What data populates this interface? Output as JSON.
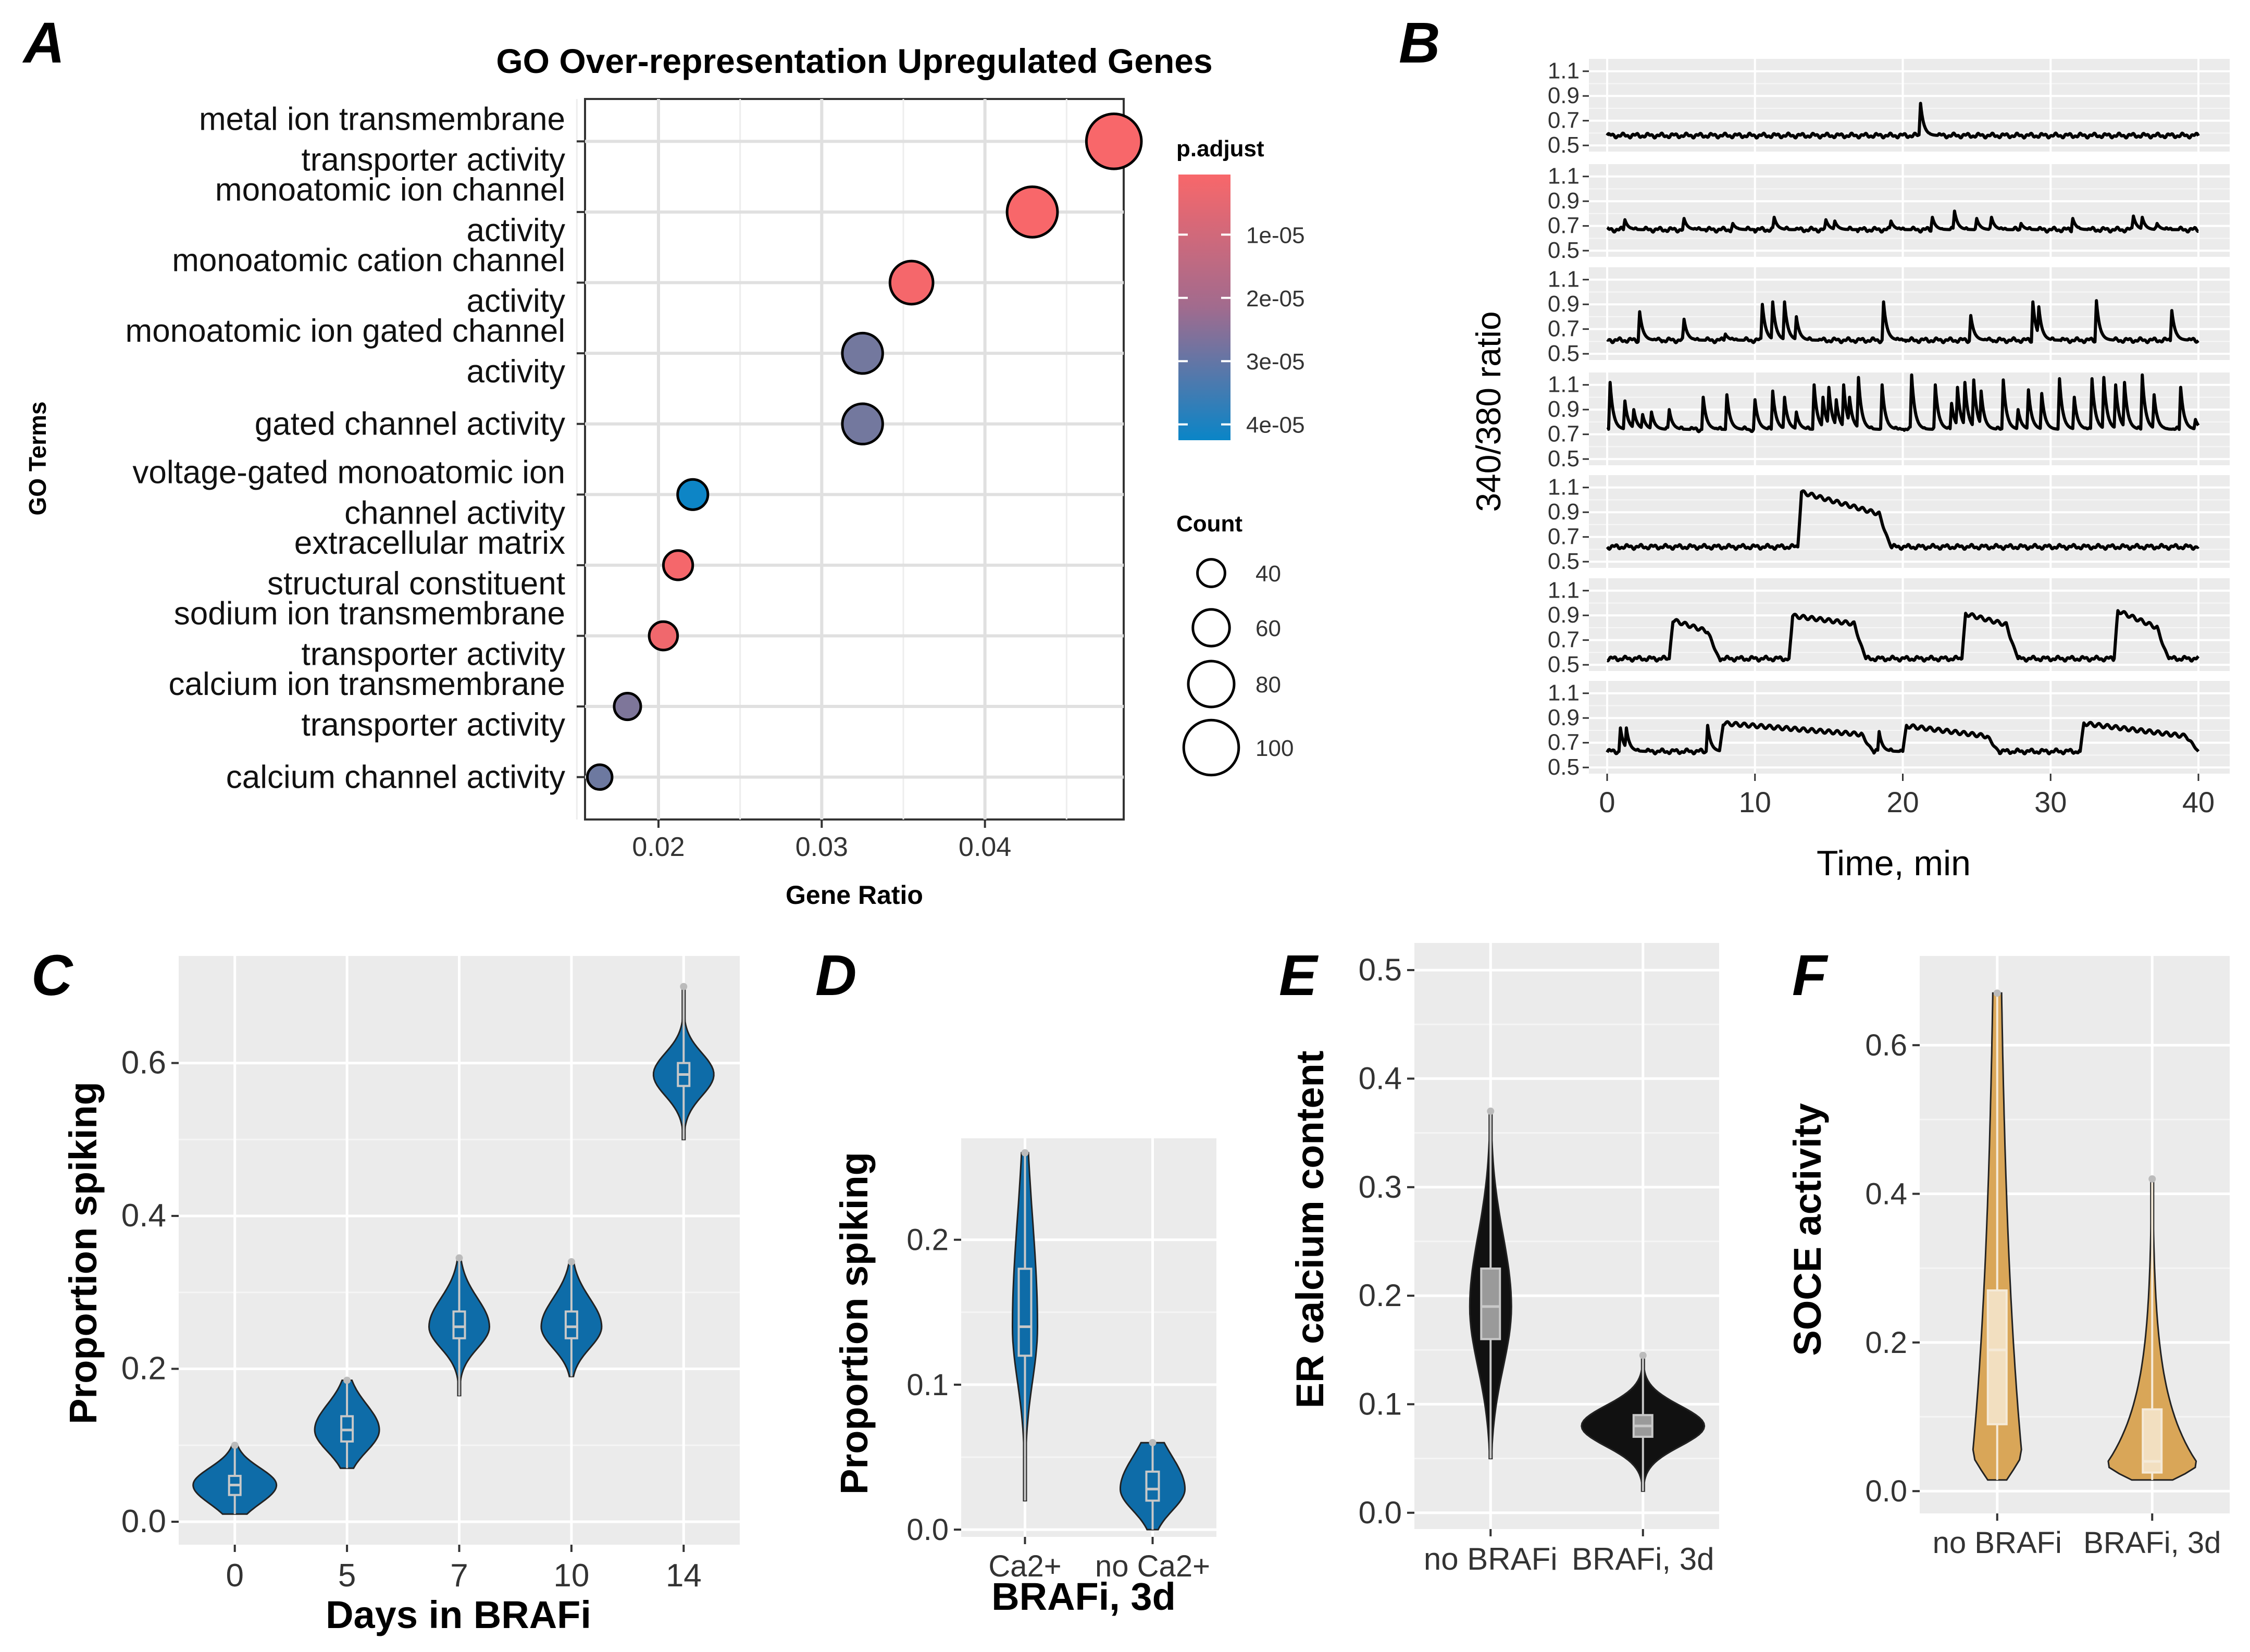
{
  "panels": {
    "A": "A",
    "B": "B",
    "C": "C",
    "D": "D",
    "E": "E",
    "F": "F"
  },
  "chart_data": [
    {
      "id": "A",
      "type": "scatter",
      "title": "GO Over-representation Upregulated Genes",
      "xlabel": "Gene Ratio",
      "ylabel": "GO Terms",
      "xlim": [
        0.0155,
        0.0485
      ],
      "xticks": [
        "0.02",
        "0.03",
        "0.04"
      ],
      "xtick_values": [
        0.02,
        0.03,
        0.04
      ],
      "terms": [
        {
          "line1": "metal ion transmembrane",
          "line2": "transporter activity",
          "x": 0.0479,
          "count": 100,
          "p_adjust": 5e-07
        },
        {
          "line1": "monoatomic ion channel",
          "line2": "activity",
          "x": 0.0429,
          "count": 90,
          "p_adjust": 5e-07
        },
        {
          "line1": "monoatomic cation channel",
          "line2": "activity",
          "x": 0.0355,
          "count": 74,
          "p_adjust": 1e-06
        },
        {
          "line1": "monoatomic ion gated channel",
          "line2": "activity",
          "x": 0.0325,
          "count": 68,
          "p_adjust": 2.4e-05
        },
        {
          "line1": "gated channel activity",
          "line2": "",
          "x": 0.0325,
          "count": 68,
          "p_adjust": 2.4e-05
        },
        {
          "line1": "voltage-gated monoatomic ion",
          "line2": "channel activity",
          "x": 0.0221,
          "count": 46,
          "p_adjust": 4.2e-05
        },
        {
          "line1": "extracellular matrix",
          "line2": "structural constituent",
          "x": 0.0212,
          "count": 44,
          "p_adjust": 1e-06
        },
        {
          "line1": "sodium ion transmembrane",
          "line2": "transporter activity",
          "x": 0.0203,
          "count": 42,
          "p_adjust": 2e-06
        },
        {
          "line1": "calcium ion transmembrane",
          "line2": "transporter activity",
          "x": 0.0181,
          "count": 38,
          "p_adjust": 2.2e-05
        },
        {
          "line1": "calcium channel activity",
          "line2": "",
          "x": 0.0164,
          "count": 34,
          "p_adjust": 2.5e-05
        }
      ],
      "color_legend": {
        "title": "p.adjust",
        "labels": [
          "1e-05",
          "2e-05",
          "3e-05",
          "4e-05"
        ],
        "values": [
          1e-05,
          2e-05,
          3e-05,
          4e-05
        ],
        "range": [
          5e-07,
          4.25e-05
        ],
        "low_color": "#F8676A",
        "high_color": "#0A85C7"
      },
      "size_legend": {
        "title": "Count",
        "labels": [
          "40",
          "60",
          "80",
          "100"
        ],
        "values": [
          40,
          60,
          80,
          100
        ]
      }
    },
    {
      "id": "B",
      "type": "line",
      "ylabel": "340/380 ratio",
      "xlabel": "Time, min",
      "xlim": [
        0,
        40
      ],
      "xticks": [
        "0",
        "10",
        "20",
        "30",
        "40"
      ],
      "xtick_values": [
        0,
        10,
        20,
        30,
        40
      ],
      "ylim": [
        0.45,
        1.2
      ],
      "yticks": [
        "1.1",
        "0.9",
        "0.7",
        "0.5"
      ],
      "ytick_values": [
        1.1,
        0.9,
        0.7,
        0.5
      ],
      "traces": [
        {
          "baseline": 0.58,
          "spikes": [
            [
              21.2,
              0.84
            ]
          ],
          "plateaus": []
        },
        {
          "baseline": 0.67,
          "spikes": [
            [
              1.2,
              0.75
            ],
            [
              5.2,
              0.76
            ],
            [
              8.5,
              0.72
            ],
            [
              11.3,
              0.77
            ],
            [
              14.8,
              0.75
            ],
            [
              15.4,
              0.74
            ],
            [
              19.2,
              0.74
            ],
            [
              22.0,
              0.77
            ],
            [
              23.5,
              0.82
            ],
            [
              25.0,
              0.76
            ],
            [
              26.0,
              0.77
            ],
            [
              28.0,
              0.72
            ],
            [
              31.5,
              0.76
            ],
            [
              35.6,
              0.78
            ],
            [
              36.2,
              0.77
            ],
            [
              37.2,
              0.72
            ]
          ],
          "plateaus": []
        },
        {
          "baseline": 0.61,
          "spikes": [
            [
              2.2,
              0.84
            ],
            [
              5.2,
              0.78
            ],
            [
              8.0,
              0.66
            ],
            [
              10.5,
              0.9
            ],
            [
              11.2,
              0.92
            ],
            [
              12.0,
              0.92
            ],
            [
              12.8,
              0.8
            ],
            [
              18.7,
              0.92
            ],
            [
              24.6,
              0.81
            ],
            [
              28.8,
              0.92
            ],
            [
              29.2,
              0.88
            ],
            [
              33.1,
              0.93
            ],
            [
              38.2,
              0.85
            ]
          ],
          "plateaus": []
        },
        {
          "baseline": 0.74,
          "spikes": [
            [
              0.2,
              1.12
            ],
            [
              1.2,
              0.97
            ],
            [
              1.8,
              0.9
            ],
            [
              2.4,
              0.86
            ],
            [
              3.0,
              0.88
            ],
            [
              4.2,
              0.9
            ],
            [
              6.5,
              1.0
            ],
            [
              8.1,
              1.02
            ],
            [
              10.0,
              0.98
            ],
            [
              11.2,
              1.05
            ],
            [
              12.0,
              1.0
            ],
            [
              12.8,
              0.88
            ],
            [
              14.0,
              1.1
            ],
            [
              14.6,
              1.0
            ],
            [
              15.0,
              1.08
            ],
            [
              15.5,
              0.98
            ],
            [
              16.0,
              1.1
            ],
            [
              16.4,
              1.0
            ],
            [
              17.0,
              1.16
            ],
            [
              18.6,
              1.1
            ],
            [
              20.6,
              1.18
            ],
            [
              22.2,
              1.1
            ],
            [
              23.3,
              0.95
            ],
            [
              23.7,
              1.08
            ],
            [
              24.2,
              1.12
            ],
            [
              24.8,
              1.14
            ],
            [
              25.3,
              1.05
            ],
            [
              26.8,
              1.14
            ],
            [
              27.8,
              0.9
            ],
            [
              28.5,
              1.06
            ],
            [
              29.4,
              1.03
            ],
            [
              30.6,
              1.15
            ],
            [
              31.6,
              1.0
            ],
            [
              32.8,
              1.15
            ],
            [
              33.6,
              1.16
            ],
            [
              34.4,
              1.1
            ],
            [
              35.0,
              1.12
            ],
            [
              36.2,
              1.18
            ],
            [
              37.0,
              1.02
            ],
            [
              38.8,
              1.08
            ],
            [
              39.8,
              0.82
            ]
          ],
          "plateaus": []
        },
        {
          "baseline": 0.62,
          "spikes": [],
          "plateaus": [
            [
              12.9,
              19.2,
              1.07,
              0.86
            ]
          ]
        },
        {
          "baseline": 0.55,
          "spikes": [],
          "plateaus": [
            [
              4.2,
              7.6,
              0.87,
              0.74
            ],
            [
              12.3,
              17.5,
              0.9,
              0.82
            ],
            [
              24.0,
              27.8,
              0.92,
              0.8
            ],
            [
              34.3,
              38.0,
              0.95,
              0.76
            ]
          ]
        },
        {
          "baseline": 0.63,
          "spikes": [
            [
              0.9,
              0.82
            ],
            [
              1.3,
              0.82
            ],
            [
              6.8,
              0.84
            ],
            [
              18.4,
              0.79
            ]
          ],
          "plateaus": [
            [
              7.6,
              18.0,
              0.86,
              0.76
            ],
            [
              20.0,
              26.5,
              0.84,
              0.74
            ],
            [
              32.0,
              40.0,
              0.86,
              0.74
            ]
          ]
        }
      ]
    },
    {
      "id": "C",
      "type": "violin",
      "ylabel": "Proportion spiking",
      "xlabel": "Days in BRAFi",
      "categories": [
        "0",
        "5",
        "7",
        "10",
        "14"
      ],
      "ylim": [
        -0.03,
        0.74
      ],
      "yticks": [
        "0.0",
        "0.2",
        "0.4",
        "0.6"
      ],
      "ytick_values": [
        0.0,
        0.2,
        0.4,
        0.6
      ],
      "fill": "#0E6CA8",
      "violins": [
        {
          "min": 0.01,
          "q1": 0.035,
          "median": 0.048,
          "q3": 0.06,
          "max": 0.1
        },
        {
          "min": 0.07,
          "q1": 0.105,
          "median": 0.12,
          "q3": 0.138,
          "max": 0.185
        },
        {
          "min": 0.165,
          "q1": 0.24,
          "median": 0.255,
          "q3": 0.275,
          "max": 0.345
        },
        {
          "min": 0.19,
          "q1": 0.24,
          "median": 0.255,
          "q3": 0.275,
          "max": 0.34
        },
        {
          "min": 0.5,
          "q1": 0.57,
          "median": 0.585,
          "q3": 0.6,
          "max": 0.7
        }
      ]
    },
    {
      "id": "D",
      "type": "violin",
      "ylabel": "Proportion spiking",
      "xlabel": "BRAFi, 3d",
      "categories": [
        "Ca2+",
        "no Ca2+"
      ],
      "ylim": [
        -0.005,
        0.27
      ],
      "yticks": [
        "0.0",
        "0.1",
        "0.2"
      ],
      "ytick_values": [
        0.0,
        0.1,
        0.2
      ],
      "fill": "#0E6CA8",
      "violins": [
        {
          "min": 0.02,
          "q1": 0.12,
          "median": 0.14,
          "q3": 0.18,
          "max": 0.26
        },
        {
          "min": 0.0,
          "q1": 0.02,
          "median": 0.028,
          "q3": 0.04,
          "max": 0.06
        }
      ]
    },
    {
      "id": "E",
      "type": "violin",
      "ylabel": "ER calcium content",
      "xlabel": "",
      "categories": [
        "no BRAFi",
        "BRAFi, 3d"
      ],
      "ylim": [
        -0.015,
        0.525
      ],
      "yticks": [
        "0.0",
        "0.1",
        "0.2",
        "0.3",
        "0.4",
        "0.5"
      ],
      "ytick_values": [
        0.0,
        0.1,
        0.2,
        0.3,
        0.4,
        0.5
      ],
      "fill": "#111111",
      "violins": [
        {
          "min": 0.05,
          "q1": 0.16,
          "median": 0.19,
          "q3": 0.225,
          "max": 0.37
        },
        {
          "min": 0.02,
          "q1": 0.07,
          "median": 0.08,
          "q3": 0.09,
          "max": 0.145
        }
      ]
    },
    {
      "id": "F",
      "type": "violin",
      "ylabel": "SOCE activity",
      "xlabel": "",
      "categories": [
        "no BRAFi",
        "BRAFi, 3d"
      ],
      "ylim": [
        -0.03,
        0.72
      ],
      "yticks": [
        "0.0",
        "0.2",
        "0.4",
        "0.6"
      ],
      "ytick_values": [
        0.0,
        0.2,
        0.4,
        0.6
      ],
      "fill": "#D9A658",
      "violins": [
        {
          "min": 0.015,
          "q1": 0.09,
          "median": 0.19,
          "q3": 0.27,
          "max": 0.67
        },
        {
          "min": 0.015,
          "q1": 0.025,
          "median": 0.04,
          "q3": 0.11,
          "max": 0.42
        }
      ]
    }
  ]
}
